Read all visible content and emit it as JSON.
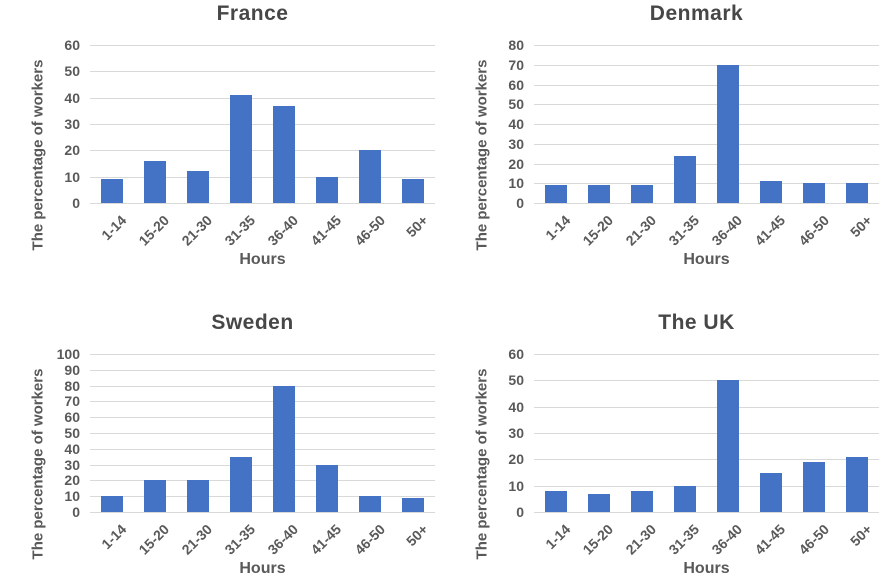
{
  "colors": {
    "bar": "#4472C4",
    "gridline": "#D9D9D9",
    "axis_text": "#595959",
    "title_text": "#474747"
  },
  "chart_data": [
    {
      "type": "bar",
      "title": "France",
      "xlabel": "Hours",
      "ylabel": "The percentage of workers",
      "categories": [
        "1-14",
        "15-20",
        "21-30",
        "31-35",
        "36-40",
        "41-45",
        "46-50",
        "50+"
      ],
      "values": [
        9,
        16,
        12,
        41,
        37,
        10,
        20,
        9
      ],
      "ylim": [
        0,
        60
      ],
      "y_step": 10,
      "grid": true,
      "legend": false
    },
    {
      "type": "bar",
      "title": "Denmark",
      "xlabel": "Hours",
      "ylabel": "The percentage of workers",
      "categories": [
        "1-14",
        "15-20",
        "21-30",
        "31-35",
        "36-40",
        "41-45",
        "46-50",
        "50+"
      ],
      "values": [
        9,
        9,
        9,
        24,
        70,
        11,
        10,
        10
      ],
      "ylim": [
        0,
        80
      ],
      "y_step": 10,
      "grid": true,
      "legend": false
    },
    {
      "type": "bar",
      "title": "Sweden",
      "xlabel": "Hours",
      "ylabel": "The percentage of workers",
      "categories": [
        "1-14",
        "15-20",
        "21-30",
        "31-35",
        "36-40",
        "41-45",
        "46-50",
        "50+"
      ],
      "values": [
        10,
        20,
        20,
        35,
        80,
        30,
        10,
        9
      ],
      "ylim": [
        0,
        100
      ],
      "y_step": 10,
      "grid": true,
      "legend": false
    },
    {
      "type": "bar",
      "title": "The UK",
      "xlabel": "Hours",
      "ylabel": "The percentage of workers",
      "categories": [
        "1-14",
        "15-20",
        "21-30",
        "31-35",
        "36-40",
        "41-45",
        "46-50",
        "50+"
      ],
      "values": [
        8,
        7,
        8,
        10,
        50,
        15,
        19,
        21
      ],
      "ylim": [
        0,
        60
      ],
      "y_step": 10,
      "grid": true,
      "legend": false
    }
  ]
}
